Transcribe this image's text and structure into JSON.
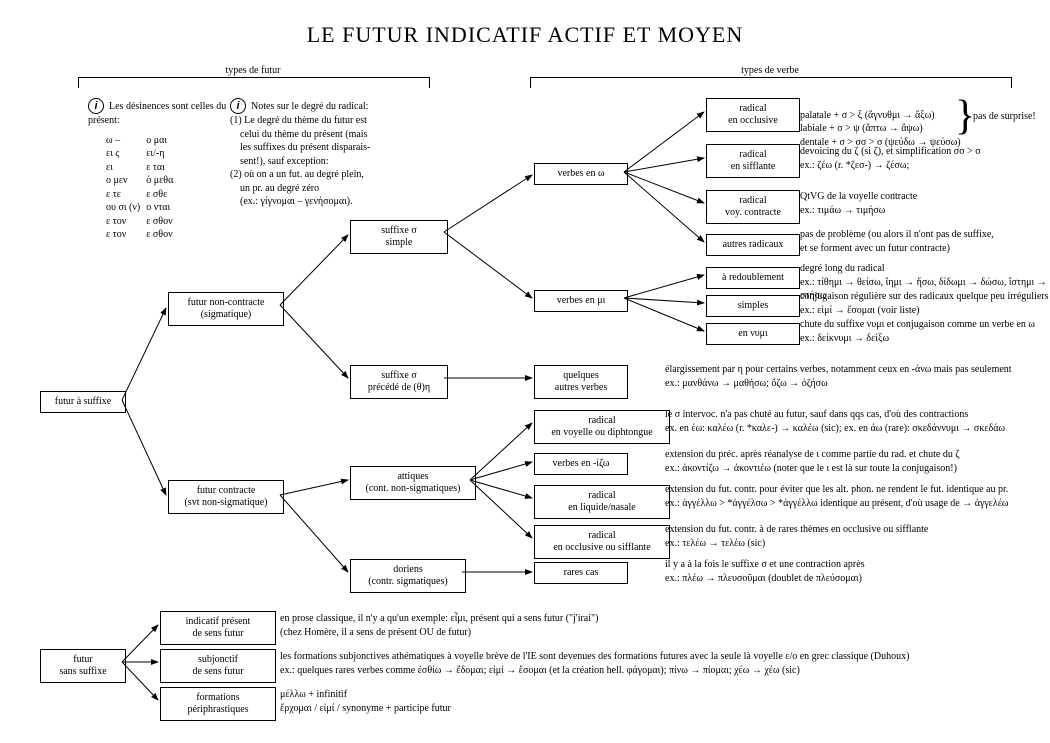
{
  "title": "LE FUTUR INDICATIF ACTIF ET MOYEN",
  "group_a": "types de futur",
  "group_b": "types de verbe",
  "info1_label": "Les désinences sont celles du présent:",
  "desinences": [
    [
      "ω –",
      "ο μαι"
    ],
    [
      "ει ς",
      "ει/-η"
    ],
    [
      "ει",
      "ε ται"
    ],
    [
      "ο μεν",
      "ό μεθα"
    ],
    [
      "ε τε",
      "ε σθε"
    ],
    [
      "ου σι (ν)",
      "ο νται"
    ],
    [
      "ε τον",
      "ε σθον"
    ],
    [
      "ε τον",
      "ε σθον"
    ]
  ],
  "info2_lines": [
    "Notes sur le degré du radical:",
    "(1) Le degré du thème du futur est",
    "    celui du thème du présent (mais",
    "    les suffixes du présent disparais-",
    "    sent!), sauf exception:",
    "(2) où on a un fut. au degré plein,",
    "    un pr. au degré zéro",
    "    (ex.: γίγνομαι – γενήσομαι)."
  ],
  "n": {
    "r1": "futur à suffixe",
    "r2": "futur\nsans suffixe",
    "a1": "futur non-contracte\n(sigmatique)",
    "a2": "futur contracte\n(svt non-sigmatique)",
    "b1": "suffixe σ\nsimple",
    "b2": "suffixe σ\nprécédé de (θ)η",
    "b3": "attiques\n(cont. non-sigmatiques)",
    "b4": "doriens\n(contr. sigmatiques)",
    "c1": "verbes en ω",
    "c2": "verbes en μι",
    "c3": "quelques\nautres verbes",
    "c4": "radical\nen voyelle ou diphtongue",
    "c5": "verbes en -ίζω",
    "c6": "radical\nen liquide/nasale",
    "c7": "radical\nen occlusive ou sifflante",
    "c8": "rares cas",
    "d1": "radical\nen occlusive",
    "d2": "radical\nen sifflante",
    "d3": "radical\nvoy. contracte",
    "d4": "autres radicaux",
    "d5": "à redoublement",
    "d6": "simples",
    "d7": "en νυμι",
    "e1": "indicatif présent\nde sens futur",
    "e2": "subjonctif\nde sens futur",
    "e3": "formations\npériphrastiques"
  },
  "notes": {
    "d1a": "palatale + σ > ξ (ἄγνυθμι → ἄξω)",
    "d1b": "labiale + σ > ψ (ἅπτω → ἅψω)",
    "d1c": "dentale + σ > σσ > σ (ψεύδω → ψεύσω)",
    "d1n": "pas de surprise!",
    "d2": "devoicing du ζ (si ζ), et simplification σσ > σ\nex.: ζέω (r. *ζεσ-) → ζέσω;",
    "d3": "QtVG de la voyelle contracte\nex.: τιμάω → τιμήσω",
    "d4": "pas de problème (ou alors il n'ont pas de suffixe,\n   et se forment avec un futur contracte)",
    "d5": "degré long du radical\nex.: τίθημι → θείσω, ἵημι → ἥσω, δίδωμι → δώσω, ἵστημι → στήσω",
    "d6": "conjugaison régulière sur des radicaux quelque peu irréguliers\nex.: εἰμί → ἔσομαι (voir liste)",
    "d7": "chute du suffixe νυμι et conjugaison comme un verbe en ω\nex.: δείκνυμι → δείξω",
    "c3": "élargissement par η pour certains verbes, notamment ceux en -άνω mais pas seulement\nex.: μανθάνω → μαθήσω; ὄζω → ὀζήσω",
    "c4": "le σ intervoc. n'a pas chuté au futur, sauf dans qqs cas, d'où des contractions\nex. en έω: καλέω (r. *καλε-) → καλέω (sic); ex. en άω (rare): σκεδάννυμι → σκεδάω",
    "c5": "extension du préc. après réanalyse de ι comme partie du rad. et chute du ζ\nex.: ἀκοντίζω → ἀκοντιέω (noter que le ι est là sur toute la conjugaison!)",
    "c6": "extension du fut. contr. pour éviter que les alt. phon. ne rendent le fut. identique au pr.\nex.: ἀγγέλλω > *ἀγγέλσω > *ἀγγέλλω identique au présent, d'où usage de → ἀγγελέω",
    "c7": "extension du fut. contr. à de rares thèmes en occlusive ou sifflante\nex.: τελέω → τελέω (sic)",
    "c8": "il y a à la fois le suffixe σ et une contraction après\nex.: πλέω → πλευσοῦμαι (doublet de πλεύσομαι)",
    "e1": "en prose classique, il n'y a qu'un exemple: εἶμι, présent qui a sens futur (\"j'irai\")\n(chez Homère, il a sens de présent OU de futur)",
    "e2": "les formations subjonctives athématiques à voyelle brève de l'IE sont devenues des formations futures avec la seule là voyelle ε/ο en grec classique (Duhoux)\nex.: quelques rares verbes comme ἐσθίω → ἔδομαι; εἰμί → ἔσομαι (et la création hell. φάγομαι); πίνω → πίομαι; χέω → χέω (sic)",
    "e3": "μέλλω + infinitif\nἔρχομαι / εἰμί / synonyme + participe futur"
  },
  "style": {
    "title_fontsize": 22,
    "body_fontsize": 10,
    "line_color": "#000",
    "bg": "#fff",
    "node_border": "#000"
  }
}
